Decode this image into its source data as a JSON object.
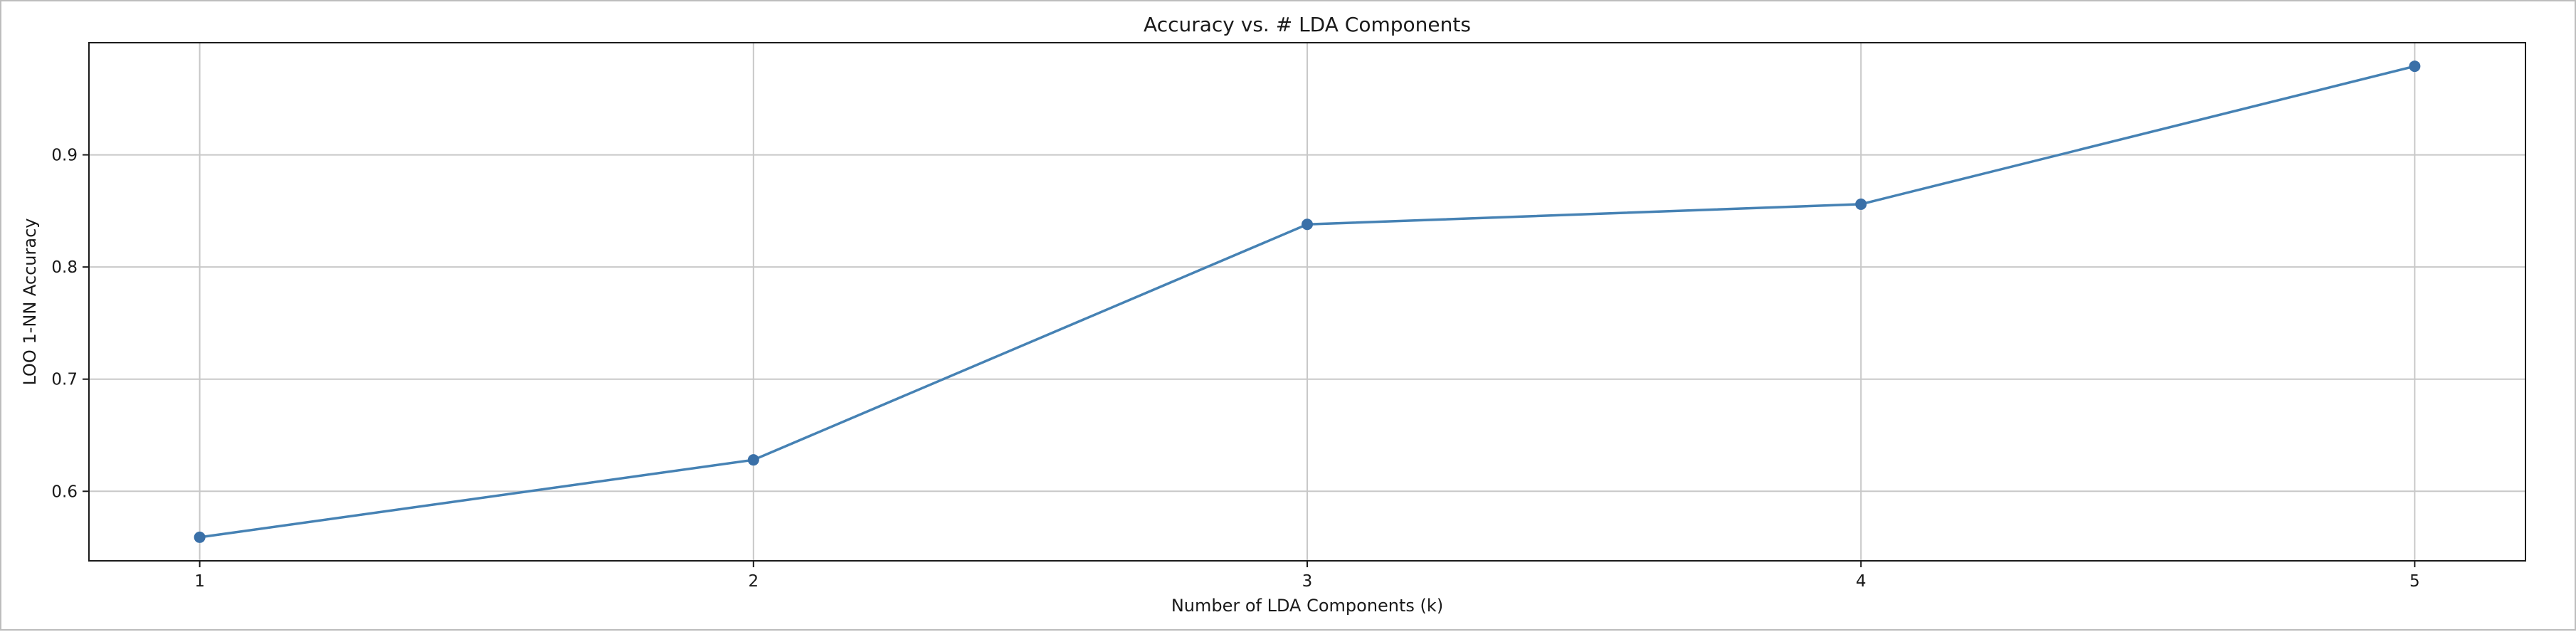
{
  "chart_data": {
    "type": "line",
    "title": "Accuracy vs. # LDA Components",
    "xlabel": "Number of LDA Components (k)",
    "ylabel": "LOO 1-NN Accuracy",
    "x": [
      1,
      2,
      3,
      4,
      5
    ],
    "y": [
      0.559,
      0.628,
      0.838,
      0.856,
      0.979
    ],
    "xlim": [
      0.8,
      5.2
    ],
    "ylim": [
      0.538,
      1.0
    ],
    "xticks": [
      1,
      2,
      3,
      4,
      5
    ],
    "yticks": [
      0.6,
      0.7,
      0.8,
      0.9
    ],
    "ytick_labels": [
      "0.6",
      "0.7",
      "0.8",
      "0.9"
    ],
    "xtick_labels": [
      "1",
      "2",
      "3",
      "4",
      "5"
    ],
    "grid": true,
    "marker": "circle",
    "colors": {
      "line": "#4682b4",
      "marker": "#3a70a8",
      "grid": "#c8c8c8",
      "axes": "#1a1a1a"
    }
  }
}
